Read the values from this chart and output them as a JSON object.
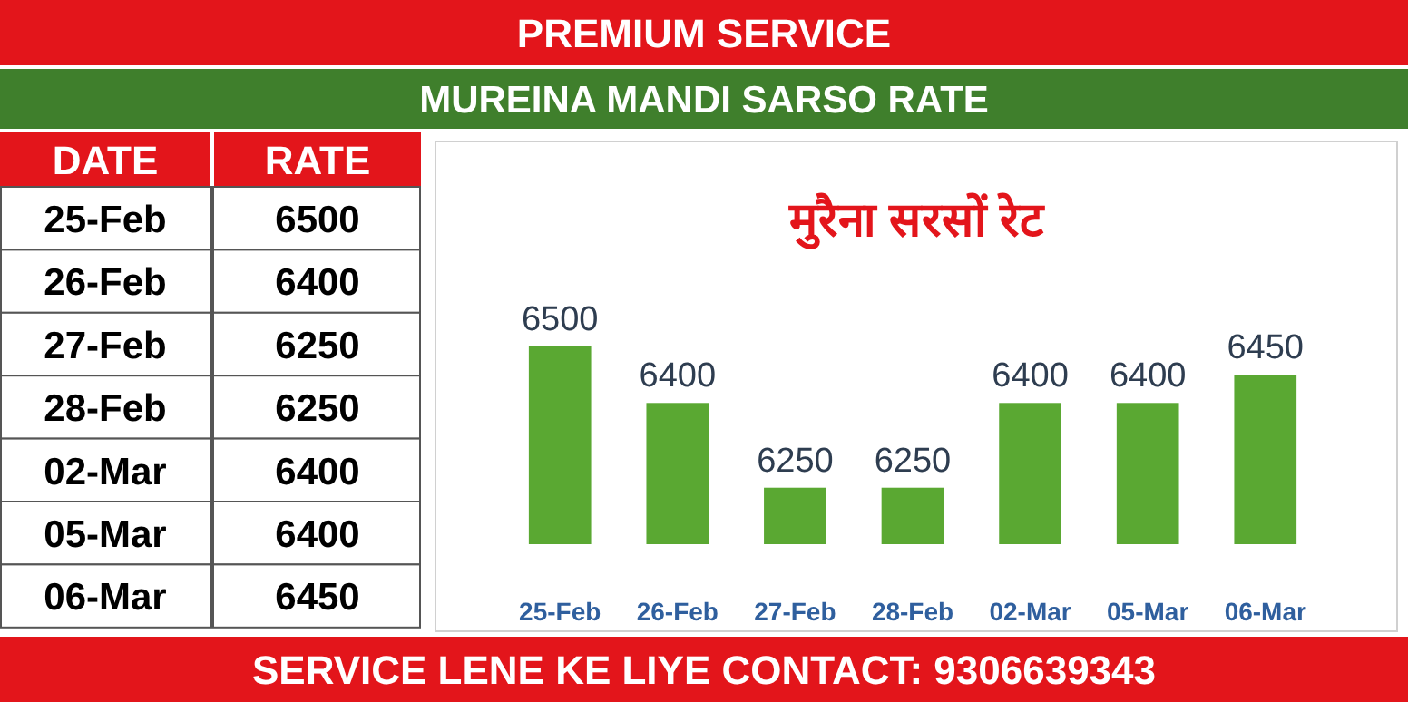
{
  "chart_data": [
    {
      "type": "other",
      "xlabel": "DATE",
      "ylabel": "RATE",
      "data_labels": true,
      "categories": [
        "25-Feb",
        "26-Feb",
        "27-Feb",
        "28-Feb",
        "02-Mar",
        "05-Mar",
        "06-Mar"
      ],
      "values": [
        6500,
        6400,
        6250,
        6250,
        6400,
        6400,
        6450
      ]
    },
    {
      "type": "bar",
      "title": "मुरैना सरसों रेट",
      "categories": [
        "25-Feb",
        "26-Feb",
        "27-Feb",
        "28-Feb",
        "02-Mar",
        "05-Mar",
        "06-Mar"
      ],
      "values": [
        6500,
        6400,
        6250,
        6250,
        6400,
        6400,
        6450
      ],
      "color": "#5aa832",
      "ylim": [
        6150,
        6500
      ],
      "data_labels": true,
      "annotations": [
        "PREMIUM SERVICE",
        "MUREINA MANDI SARSO RATE",
        "SERVICE LENE KE LIYE CONTACT: 9306639343"
      ]
    }
  ]
}
